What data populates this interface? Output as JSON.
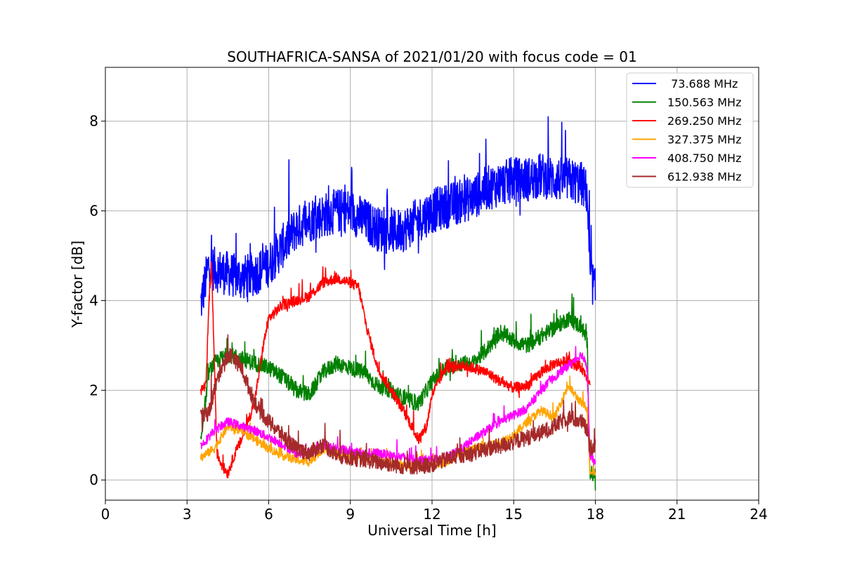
{
  "chart_data": {
    "type": "line",
    "title": "SOUTHAFRICA-SANSA of 2021/01/20 with focus code = 01",
    "xlabel": "Universal Time [h]",
    "ylabel": "Y-factor [dB]",
    "xlim": [
      0,
      24
    ],
    "ylim": [
      -0.45,
      9.2
    ],
    "xticks": [
      0,
      3,
      6,
      9,
      12,
      15,
      18,
      21,
      24
    ],
    "xtick_labels": [
      "0",
      "3",
      "6",
      "9",
      "12",
      "15",
      "18",
      "21",
      "24"
    ],
    "yticks": [
      0,
      2,
      4,
      6,
      8
    ],
    "ytick_labels": [
      "0",
      "2",
      "4",
      "6",
      "8"
    ],
    "grid": true,
    "legend_position": "top-right",
    "series": [
      {
        "name": " 73.688 MHz",
        "color": "#0000ff",
        "noise": 0.5,
        "x": [
          3.5,
          3.8,
          4.0,
          4.5,
          5.0,
          5.5,
          6.0,
          6.5,
          7.0,
          7.5,
          8.0,
          8.5,
          9.0,
          9.5,
          10.0,
          10.5,
          11.0,
          11.5,
          12.0,
          12.5,
          13.0,
          13.5,
          14.0,
          14.5,
          15.0,
          15.5,
          16.0,
          16.5,
          17.0,
          17.5,
          17.7,
          17.8,
          18.0
        ],
        "y": [
          3.9,
          4.8,
          4.7,
          4.6,
          4.5,
          4.6,
          4.8,
          5.2,
          5.6,
          5.8,
          5.9,
          6.0,
          6.0,
          5.8,
          5.6,
          5.5,
          5.6,
          5.8,
          6.0,
          6.1,
          6.2,
          6.3,
          6.5,
          6.6,
          6.7,
          6.7,
          6.8,
          6.7,
          6.7,
          6.6,
          6.4,
          4.6,
          4.2
        ]
      },
      {
        "name": "150.563 MHz",
        "color": "#008000",
        "noise": 0.18,
        "x": [
          3.5,
          3.8,
          4.0,
          4.5,
          5.0,
          5.5,
          6.0,
          6.5,
          7.0,
          7.5,
          8.0,
          8.5,
          9.0,
          9.5,
          10.0,
          10.5,
          11.0,
          11.5,
          12.0,
          12.5,
          13.0,
          13.5,
          14.0,
          14.5,
          15.0,
          15.5,
          16.0,
          16.5,
          17.0,
          17.5,
          17.7,
          17.8,
          18.0
        ],
        "y": [
          0.85,
          2.4,
          2.6,
          2.8,
          2.7,
          2.6,
          2.5,
          2.3,
          2.0,
          1.9,
          2.4,
          2.6,
          2.5,
          2.4,
          2.1,
          2.0,
          1.8,
          1.7,
          2.2,
          2.5,
          2.6,
          2.6,
          2.9,
          3.3,
          3.1,
          3.0,
          3.2,
          3.4,
          3.6,
          3.4,
          3.1,
          0.15,
          0.1
        ]
      },
      {
        "name": "269.250 MHz",
        "color": "#ff0000",
        "noise": 0.12,
        "x": [
          3.5,
          3.7,
          3.8,
          3.9,
          4.1,
          4.3,
          4.5,
          4.7,
          5.0,
          5.3,
          5.5,
          5.8,
          6.0,
          6.5,
          7.0,
          7.5,
          8.0,
          8.5,
          9.0,
          9.3,
          9.6,
          10.0,
          10.5,
          11.0,
          11.5,
          11.8,
          12.0,
          12.5,
          13.0,
          13.5,
          14.0,
          14.5,
          15.0,
          15.5,
          16.0,
          16.5,
          17.0,
          17.5,
          17.8
        ],
        "y": [
          2.0,
          2.1,
          3.9,
          4.8,
          0.6,
          0.3,
          0.15,
          0.5,
          0.9,
          1.4,
          1.8,
          3.0,
          3.6,
          3.9,
          4.0,
          4.1,
          4.4,
          4.5,
          4.4,
          4.3,
          3.4,
          2.5,
          2.0,
          1.5,
          0.9,
          1.2,
          1.9,
          2.5,
          2.55,
          2.5,
          2.4,
          2.2,
          2.05,
          2.1,
          2.4,
          2.6,
          2.65,
          2.5,
          2.2
        ]
      },
      {
        "name": "327.375 MHz",
        "color": "#ffa500",
        "noise": 0.1,
        "x": [
          3.5,
          4.0,
          4.5,
          5.0,
          5.5,
          6.0,
          6.5,
          7.0,
          7.5,
          8.0,
          8.5,
          9.0,
          9.5,
          10.0,
          10.5,
          11.0,
          11.5,
          12.0,
          12.5,
          13.0,
          13.5,
          14.0,
          14.5,
          15.0,
          15.5,
          16.0,
          16.5,
          17.0,
          17.5,
          17.7,
          17.8,
          18.0
        ],
        "y": [
          0.5,
          0.7,
          1.2,
          1.1,
          0.9,
          0.7,
          0.55,
          0.45,
          0.4,
          0.7,
          0.6,
          0.5,
          0.5,
          0.45,
          0.35,
          0.3,
          0.3,
          0.35,
          0.4,
          0.55,
          0.7,
          0.75,
          0.85,
          1.0,
          1.3,
          1.55,
          1.4,
          2.1,
          1.7,
          1.6,
          0.2,
          0.2
        ]
      },
      {
        "name": "408.750 MHz",
        "color": "#ff00ff",
        "noise": 0.1,
        "x": [
          3.5,
          4.0,
          4.5,
          5.0,
          5.5,
          6.0,
          6.5,
          7.0,
          7.5,
          8.0,
          8.5,
          9.0,
          9.5,
          10.0,
          10.5,
          11.0,
          11.5,
          12.0,
          12.5,
          13.0,
          13.5,
          14.0,
          14.5,
          15.0,
          15.5,
          16.0,
          16.5,
          17.0,
          17.5,
          17.7,
          17.8,
          18.0
        ],
        "y": [
          0.75,
          1.1,
          1.3,
          1.2,
          1.1,
          0.95,
          0.8,
          0.6,
          0.6,
          0.8,
          0.7,
          0.65,
          0.6,
          0.6,
          0.55,
          0.5,
          0.45,
          0.45,
          0.5,
          0.65,
          0.9,
          1.1,
          1.3,
          1.45,
          1.6,
          2.0,
          2.3,
          2.55,
          2.8,
          2.5,
          0.5,
          0.4
        ]
      },
      {
        "name": "612.938 MHz",
        "color": "#a52a2a",
        "noise": 0.18,
        "x": [
          3.5,
          3.8,
          4.0,
          4.3,
          4.6,
          5.0,
          5.3,
          5.6,
          6.0,
          6.5,
          7.0,
          7.5,
          8.0,
          8.5,
          9.0,
          9.5,
          10.0,
          10.5,
          11.0,
          11.5,
          12.0,
          12.5,
          13.0,
          13.5,
          14.0,
          14.5,
          15.0,
          15.5,
          16.0,
          16.5,
          17.0,
          17.5,
          17.7,
          17.8,
          18.0
        ],
        "y": [
          1.4,
          1.5,
          2.0,
          2.6,
          2.8,
          2.5,
          2.0,
          1.6,
          1.3,
          1.0,
          0.7,
          0.6,
          0.8,
          0.55,
          0.5,
          0.45,
          0.4,
          0.35,
          0.3,
          0.3,
          0.35,
          0.45,
          0.55,
          0.6,
          0.7,
          0.75,
          0.85,
          0.95,
          1.05,
          1.2,
          1.4,
          1.3,
          1.1,
          0.7,
          0.8
        ]
      }
    ]
  }
}
